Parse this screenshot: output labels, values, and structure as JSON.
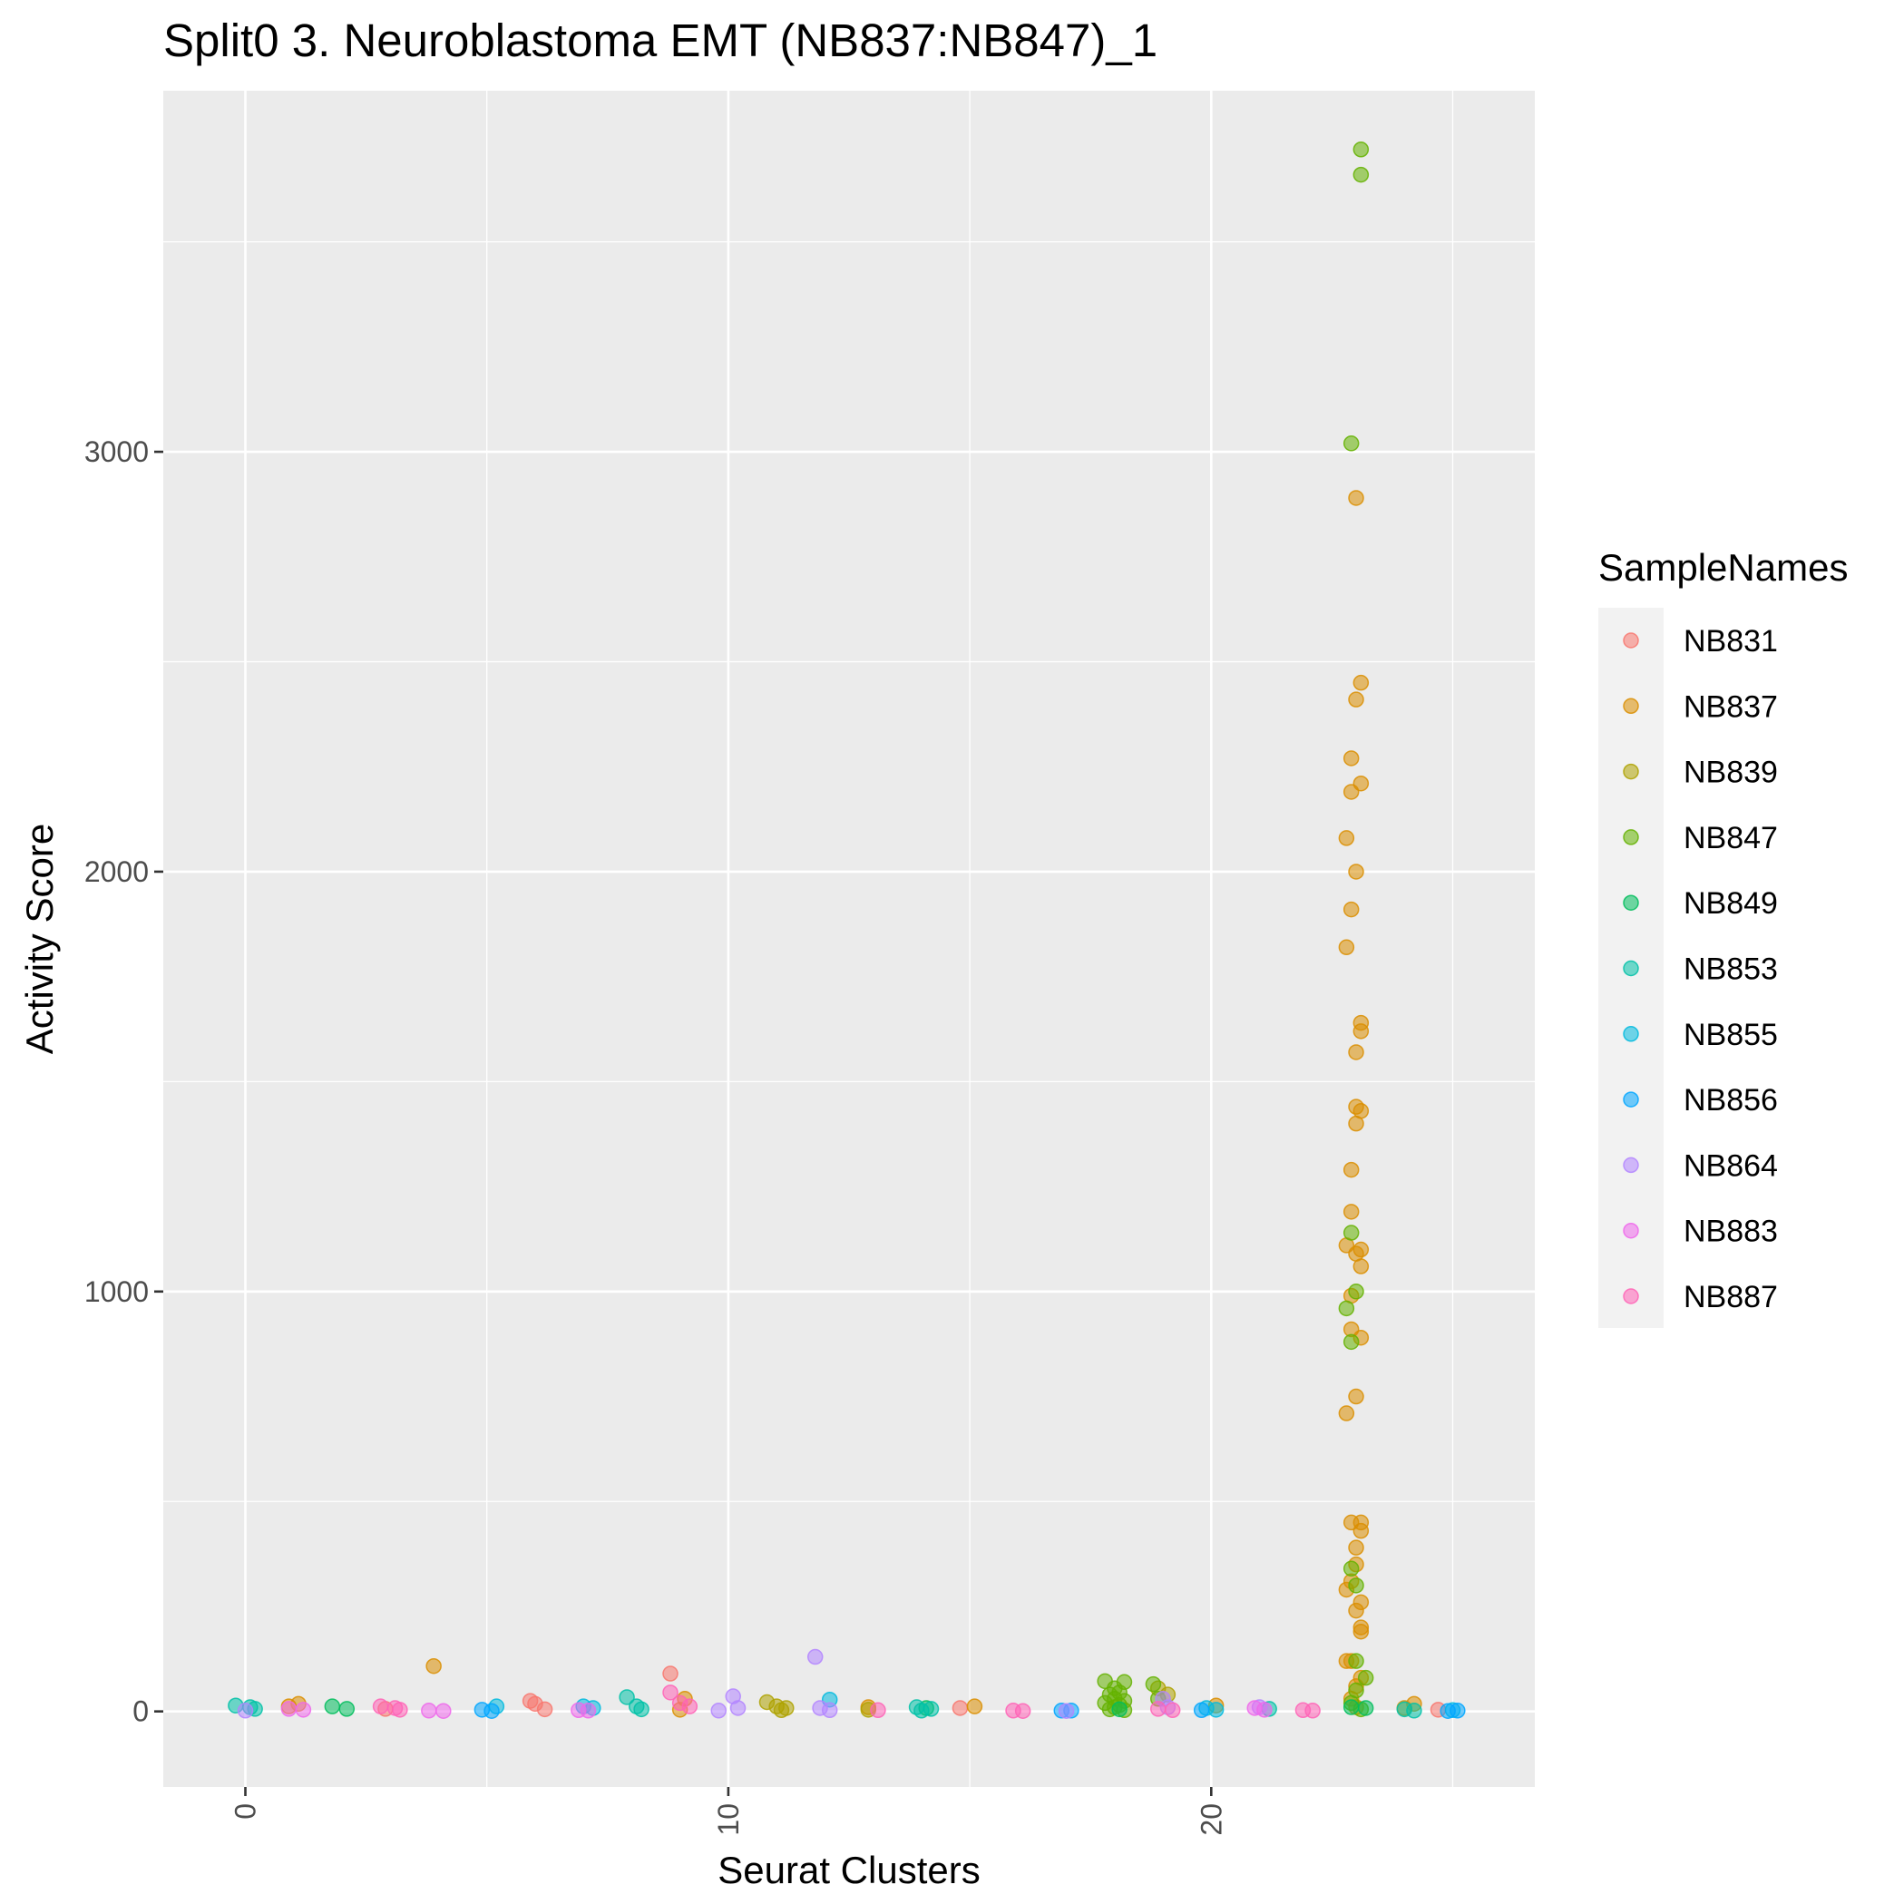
{
  "chart_data": {
    "type": "scatter",
    "title": "Split0 3. Neuroblastoma EMT (NB837:NB847)_1",
    "xlabel": "Seurat Clusters",
    "ylabel": "Activity Score",
    "xlim": [
      -1.7,
      26.7
    ],
    "ylim": [
      -180,
      3860
    ],
    "x_ticks": [
      0,
      10,
      20
    ],
    "y_ticks": [
      0,
      1000,
      2000,
      3000
    ],
    "grid": true,
    "legend": {
      "title": "SampleNames",
      "position": "right",
      "entries": [
        "NB831",
        "NB837",
        "NB839",
        "NB847",
        "NB849",
        "NB853",
        "NB855",
        "NB856",
        "NB864",
        "NB883",
        "NB887"
      ]
    },
    "colors": {
      "NB831": "#F8766D",
      "NB837": "#DB8E00",
      "NB839": "#AEA200",
      "NB847": "#64B200",
      "NB849": "#00BD5C",
      "NB853": "#00C1A7",
      "NB855": "#00BADE",
      "NB856": "#00A6FF",
      "NB864": "#B385FF",
      "NB883": "#EF67EB",
      "NB887": "#FF63B6"
    },
    "series": [
      {
        "name": "NB831",
        "points": [
          [
            5.9,
            25
          ],
          [
            6.0,
            18
          ],
          [
            6.2,
            5
          ],
          [
            8.8,
            90
          ],
          [
            14.8,
            8
          ],
          [
            2.9,
            6
          ],
          [
            24.7,
            4
          ]
        ]
      },
      {
        "name": "NB837",
        "points": [
          [
            0.9,
            12
          ],
          [
            1.1,
            18
          ],
          [
            3.9,
            108
          ],
          [
            9.1,
            30
          ],
          [
            12.9,
            10
          ],
          [
            15.1,
            12
          ],
          [
            20.1,
            14
          ],
          [
            24.2,
            18
          ],
          [
            24.0,
            8
          ],
          [
            9.0,
            4
          ],
          [
            23.0,
            2890
          ],
          [
            23.1,
            2450
          ],
          [
            23.0,
            2410
          ],
          [
            22.9,
            2270
          ],
          [
            23.1,
            2210
          ],
          [
            22.9,
            2190
          ],
          [
            22.8,
            2080
          ],
          [
            23.0,
            2000
          ],
          [
            22.9,
            1910
          ],
          [
            22.8,
            1820
          ],
          [
            23.1,
            1640
          ],
          [
            23.1,
            1620
          ],
          [
            23.0,
            1570
          ],
          [
            23.0,
            1440
          ],
          [
            23.1,
            1430
          ],
          [
            23.0,
            1400
          ],
          [
            22.9,
            1290
          ],
          [
            22.9,
            1190
          ],
          [
            23.1,
            1100
          ],
          [
            22.8,
            1110
          ],
          [
            23.1,
            1060
          ],
          [
            23.0,
            1090
          ],
          [
            22.9,
            990
          ],
          [
            22.9,
            910
          ],
          [
            23.1,
            890
          ],
          [
            23.0,
            750
          ],
          [
            22.8,
            710
          ],
          [
            22.9,
            450
          ],
          [
            23.1,
            450
          ],
          [
            23.1,
            430
          ],
          [
            23.0,
            390
          ],
          [
            23.0,
            350
          ],
          [
            22.9,
            310
          ],
          [
            22.8,
            290
          ],
          [
            23.1,
            260
          ],
          [
            23.0,
            240
          ],
          [
            23.1,
            200
          ],
          [
            23.1,
            190
          ],
          [
            22.8,
            120
          ],
          [
            22.9,
            120
          ],
          [
            23.1,
            80
          ],
          [
            23.0,
            60
          ],
          [
            22.9,
            30
          ],
          [
            23.0,
            10
          ]
        ]
      },
      {
        "name": "NB839",
        "points": [
          [
            10.8,
            22
          ],
          [
            11.0,
            12
          ],
          [
            11.2,
            8
          ],
          [
            11.1,
            3
          ],
          [
            12.9,
            4
          ],
          [
            18.9,
            55
          ],
          [
            19.1,
            40
          ]
        ]
      },
      {
        "name": "NB847",
        "points": [
          [
            23.1,
            3720
          ],
          [
            23.1,
            3660
          ],
          [
            22.9,
            3020
          ],
          [
            22.9,
            1140
          ],
          [
            23.0,
            1000
          ],
          [
            22.8,
            960
          ],
          [
            22.9,
            880
          ],
          [
            22.9,
            340
          ],
          [
            23.0,
            300
          ],
          [
            23.0,
            120
          ],
          [
            23.2,
            80
          ],
          [
            23.0,
            50
          ],
          [
            22.9,
            20
          ],
          [
            23.1,
            5
          ],
          [
            17.8,
            72
          ],
          [
            18.2,
            70
          ],
          [
            18.0,
            55
          ],
          [
            18.1,
            45
          ],
          [
            17.9,
            40
          ],
          [
            18.0,
            30
          ],
          [
            18.2,
            25
          ],
          [
            17.8,
            20
          ],
          [
            18.1,
            15
          ],
          [
            18.0,
            10
          ],
          [
            17.9,
            5
          ],
          [
            18.2,
            3
          ],
          [
            18.8,
            65
          ],
          [
            18.9,
            30
          ]
        ]
      },
      {
        "name": "NB849",
        "points": [
          [
            1.8,
            12
          ],
          [
            2.1,
            6
          ],
          [
            14.1,
            8
          ],
          [
            22.9,
            10
          ],
          [
            23.2,
            8
          ],
          [
            18.1,
            5
          ]
        ]
      },
      {
        "name": "NB853",
        "points": [
          [
            -0.2,
            14
          ],
          [
            0.1,
            10
          ],
          [
            0.2,
            6
          ],
          [
            7.9,
            34
          ],
          [
            8.1,
            12
          ],
          [
            8.2,
            5
          ],
          [
            13.9,
            10
          ],
          [
            14.2,
            6
          ],
          [
            14.0,
            2
          ],
          [
            24.0,
            5
          ],
          [
            24.2,
            2
          ],
          [
            21.2,
            6
          ]
        ]
      },
      {
        "name": "NB855",
        "points": [
          [
            5.2,
            12
          ],
          [
            7.0,
            12
          ],
          [
            7.2,
            8
          ],
          [
            12.1,
            28
          ],
          [
            19.9,
            8
          ],
          [
            20.1,
            4
          ],
          [
            25.0,
            3
          ]
        ]
      },
      {
        "name": "NB856",
        "points": [
          [
            4.9,
            4
          ],
          [
            5.1,
            1
          ],
          [
            16.9,
            2
          ],
          [
            17.1,
            2
          ],
          [
            19.8,
            3
          ],
          [
            24.9,
            1
          ],
          [
            25.1,
            2
          ]
        ]
      },
      {
        "name": "NB864",
        "points": [
          [
            0.0,
            2
          ],
          [
            9.8,
            2
          ],
          [
            10.1,
            36
          ],
          [
            10.2,
            8
          ],
          [
            11.8,
            130
          ],
          [
            11.9,
            8
          ],
          [
            12.1,
            3
          ],
          [
            19.0,
            30
          ],
          [
            19.1,
            10
          ],
          [
            17.0,
            1
          ],
          [
            21.0,
            10
          ]
        ]
      },
      {
        "name": "NB883",
        "points": [
          [
            0.9,
            6
          ],
          [
            1.2,
            4
          ],
          [
            3.8,
            2
          ],
          [
            4.1,
            1
          ],
          [
            6.9,
            3
          ],
          [
            7.1,
            2
          ],
          [
            20.9,
            8
          ],
          [
            21.1,
            4
          ]
        ]
      },
      {
        "name": "NB887",
        "points": [
          [
            2.8,
            12
          ],
          [
            3.1,
            8
          ],
          [
            3.2,
            4
          ],
          [
            8.8,
            45
          ],
          [
            9.0,
            20
          ],
          [
            9.2,
            12
          ],
          [
            13.1,
            3
          ],
          [
            15.9,
            2
          ],
          [
            16.1,
            1
          ],
          [
            18.9,
            6
          ],
          [
            19.2,
            3
          ],
          [
            21.9,
            3
          ],
          [
            22.1,
            2
          ]
        ]
      }
    ]
  }
}
